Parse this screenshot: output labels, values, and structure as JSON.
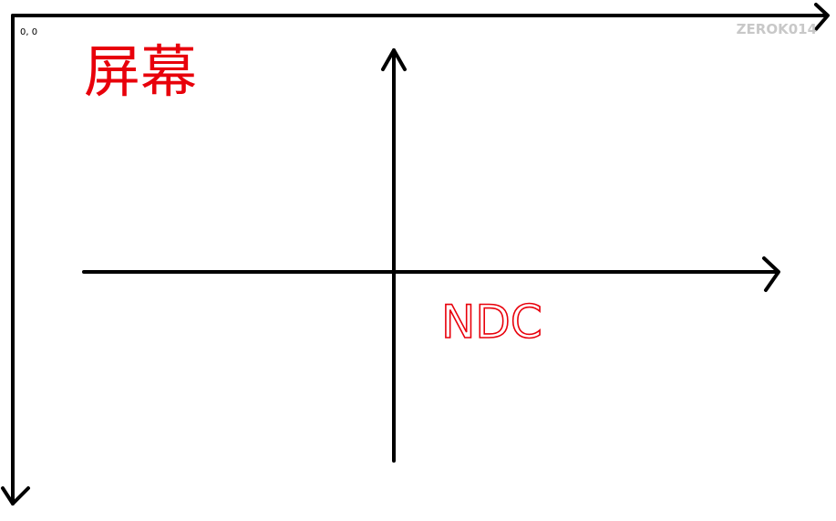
{
  "origin_label": "0, 0",
  "screen_label": "屏幕",
  "ndc_label": "NDC",
  "watermark": "ZEROK014"
}
